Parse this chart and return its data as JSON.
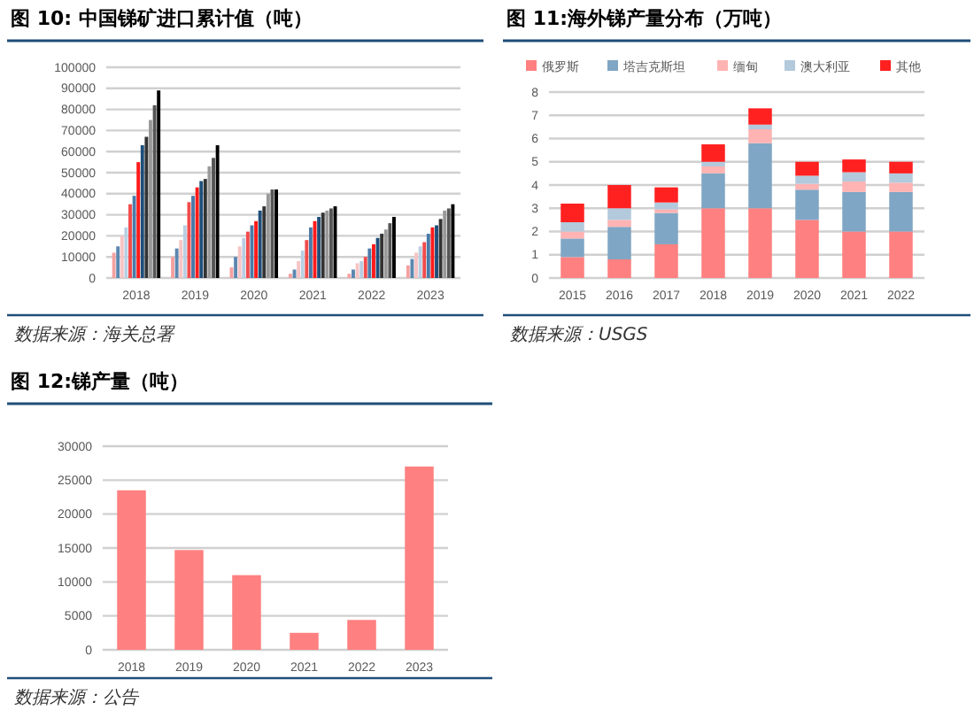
{
  "chart_data": [
    {
      "type": "bar",
      "title": "图 10: 中国锑矿进口累计值（吨）",
      "categories": [
        "2018",
        "2019",
        "2020",
        "2021",
        "2022",
        "2023"
      ],
      "ylim": [
        0,
        100000
      ],
      "yticks": [
        0,
        10000,
        20000,
        30000,
        40000,
        50000,
        60000,
        70000,
        80000,
        90000,
        100000
      ],
      "grid": "y",
      "annotations": [
        "数据来源：海关总署"
      ],
      "series": [
        {
          "color": "#f4a0a0",
          "values": [
            12000,
            10000,
            5000,
            2000,
            2000,
            6000
          ]
        },
        {
          "color": "#5b87b0",
          "values": [
            15000,
            14000,
            10000,
            4000,
            4000,
            9000
          ]
        },
        {
          "color": "#f7c4c4",
          "values": [
            20000,
            18000,
            15000,
            8000,
            7000,
            12000
          ]
        },
        {
          "color": "#b9cfe3",
          "values": [
            24000,
            25000,
            19000,
            13000,
            8000,
            15000
          ]
        },
        {
          "color": "#f24b4b",
          "values": [
            35000,
            36000,
            22000,
            18000,
            10000,
            17000
          ]
        },
        {
          "color": "#4a7aa8",
          "values": [
            39000,
            39000,
            25000,
            24000,
            14000,
            21000
          ]
        },
        {
          "color": "#ff1a1a",
          "values": [
            55000,
            43000,
            27000,
            27000,
            16000,
            24000
          ]
        },
        {
          "color": "#1f4e79",
          "values": [
            63000,
            46000,
            32000,
            29000,
            19000,
            25000
          ]
        },
        {
          "color": "#333333",
          "values": [
            67000,
            47000,
            34000,
            31000,
            21000,
            28000
          ]
        },
        {
          "color": "#999999",
          "values": [
            75000,
            53000,
            40000,
            32000,
            23000,
            32000
          ]
        },
        {
          "color": "#555555",
          "values": [
            82000,
            57000,
            42000,
            33000,
            26000,
            33000
          ]
        },
        {
          "color": "#000000",
          "values": [
            89000,
            63000,
            42000,
            34000,
            29000,
            35000
          ]
        }
      ]
    },
    {
      "type": "bar",
      "stacked": true,
      "title": "图 11:海外锑产量分布（万吨）",
      "categories": [
        "2015",
        "2016",
        "2017",
        "2018",
        "2019",
        "2020",
        "2021",
        "2022"
      ],
      "ylim": [
        0,
        8
      ],
      "yticks": [
        0,
        1,
        2,
        3,
        4,
        5,
        6,
        7,
        8
      ],
      "grid": "y",
      "legend": "top",
      "annotations": [
        "数据来源：USGS"
      ],
      "series": [
        {
          "name": "俄罗斯",
          "color": "#ff8080",
          "values": [
            0.9,
            0.8,
            1.45,
            3,
            3,
            2.5,
            2,
            2
          ]
        },
        {
          "name": "塔吉克斯坦",
          "color": "#7fa6c4",
          "values": [
            0.8,
            1.4,
            1.35,
            1.5,
            2.8,
            1.3,
            1.7,
            1.7
          ]
        },
        {
          "name": "缅甸",
          "color": "#ffb3b3",
          "values": [
            0.3,
            0.3,
            0.15,
            0.3,
            0.6,
            0.25,
            0.45,
            0.4
          ]
        },
        {
          "name": "澳大利亚",
          "color": "#b3c9dc",
          "values": [
            0.4,
            0.5,
            0.3,
            0.2,
            0.2,
            0.35,
            0.4,
            0.4
          ]
        },
        {
          "name": "其他",
          "color": "#ff2020",
          "values": [
            0.8,
            1.0,
            0.65,
            0.75,
            0.7,
            0.6,
            0.55,
            0.5
          ]
        }
      ]
    },
    {
      "type": "bar",
      "title": "图 12:锑产量（吨）",
      "categories": [
        "2018",
        "2019",
        "2020",
        "2021",
        "2022",
        "2023"
      ],
      "values": [
        23500,
        14700,
        11000,
        2500,
        4400,
        27000
      ],
      "color": "#ff8080",
      "ylim": [
        0,
        30000
      ],
      "yticks": [
        0,
        5000,
        10000,
        15000,
        20000,
        25000,
        30000
      ],
      "grid": "y",
      "annotations": [
        "数据来源：公告"
      ]
    }
  ]
}
